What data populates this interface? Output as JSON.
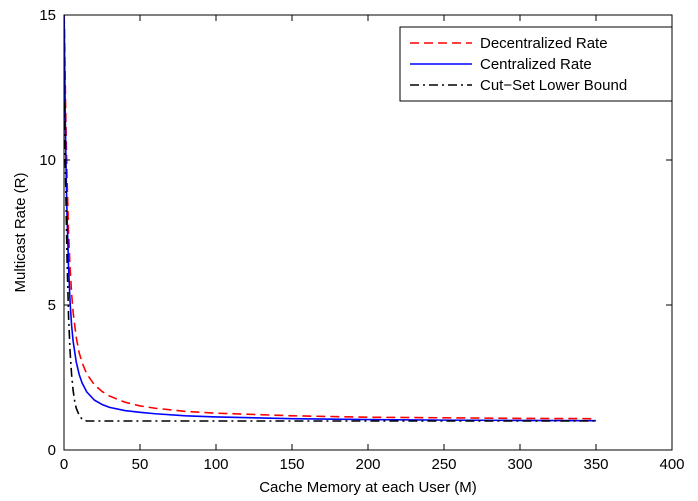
{
  "chart_data": {
    "type": "line",
    "title": "",
    "xlabel": "Cache Memory at each User (M)",
    "ylabel": "Multicast Rate (R)",
    "xlim": [
      0,
      400
    ],
    "ylim": [
      0,
      15
    ],
    "xticks": [
      0,
      50,
      100,
      150,
      200,
      250,
      300,
      350,
      400
    ],
    "yticks": [
      0,
      5,
      10,
      15
    ],
    "grid": false,
    "legend_position": "top-right",
    "series": [
      {
        "name": "Decentralized Rate",
        "color": "#ff0000",
        "style": "dashed",
        "x": [
          0.05,
          0.3,
          0.6,
          1,
          1.5,
          2,
          3,
          4,
          5,
          6,
          8,
          10,
          12,
          15,
          20,
          25,
          30,
          40,
          50,
          60,
          80,
          100,
          150,
          200,
          250,
          300,
          350
        ],
        "y": [
          15,
          14.6,
          13.5,
          12.0,
          10.6,
          9.4,
          7.5,
          6.3,
          5.4,
          4.75,
          3.9,
          3.35,
          3.0,
          2.62,
          2.25,
          2.02,
          1.86,
          1.65,
          1.52,
          1.44,
          1.33,
          1.27,
          1.18,
          1.13,
          1.11,
          1.09,
          1.08
        ]
      },
      {
        "name": "Centralized Rate",
        "color": "#0000ff",
        "style": "solid",
        "x": [
          0.05,
          0.3,
          0.6,
          1,
          1.5,
          2,
          3,
          4,
          5,
          6,
          8,
          10,
          12,
          15,
          20,
          25,
          30,
          40,
          50,
          60,
          80,
          100,
          150,
          200,
          250,
          300,
          350
        ],
        "y": [
          15,
          14.1,
          12.6,
          10.9,
          9.3,
          8.1,
          6.3,
          5.1,
          4.3,
          3.75,
          3.05,
          2.6,
          2.3,
          2.0,
          1.72,
          1.57,
          1.47,
          1.36,
          1.3,
          1.25,
          1.18,
          1.14,
          1.08,
          1.05,
          1.03,
          1.02,
          1.01
        ]
      },
      {
        "name": "Cut−Set Lower Bound",
        "color": "#000000",
        "style": "dashdot",
        "x": [
          0.05,
          0.3,
          0.6,
          1,
          1.5,
          2,
          3,
          4,
          5,
          6,
          7,
          8,
          10,
          12,
          15,
          20,
          50,
          100,
          150,
          200,
          250,
          300,
          350
        ],
        "y": [
          12.0,
          11.5,
          10.8,
          9.6,
          8.0,
          6.6,
          4.6,
          3.4,
          2.6,
          2.05,
          1.7,
          1.45,
          1.2,
          1.05,
          1.0,
          1.0,
          1.0,
          1.0,
          1.0,
          1.0,
          1.0,
          1.0,
          1.0
        ]
      }
    ]
  }
}
